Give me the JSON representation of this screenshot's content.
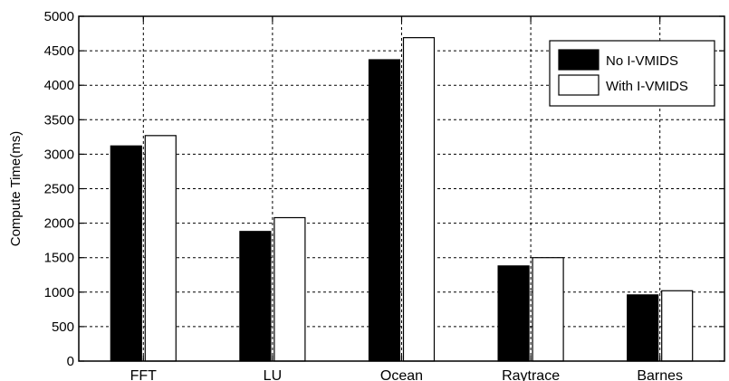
{
  "chart_data": {
    "type": "bar",
    "title": "",
    "xlabel": "",
    "ylabel": "Compute Time(ms)",
    "ylim": [
      0,
      5000
    ],
    "yticks": [
      0,
      500,
      1000,
      1500,
      2000,
      2500,
      3000,
      3500,
      4000,
      4500,
      5000
    ],
    "grid": true,
    "legend_position": "top-right",
    "categories": [
      "FFT",
      "LU",
      "Ocean",
      "Raytrace",
      "Barnes"
    ],
    "series": [
      {
        "name": "No I-VMIDS",
        "color": "#000000",
        "values": [
          3120,
          1880,
          4370,
          1380,
          960
        ]
      },
      {
        "name": "With I-VMIDS",
        "color": "#ffffff",
        "values": [
          3270,
          2080,
          4690,
          1500,
          1020
        ]
      }
    ]
  }
}
